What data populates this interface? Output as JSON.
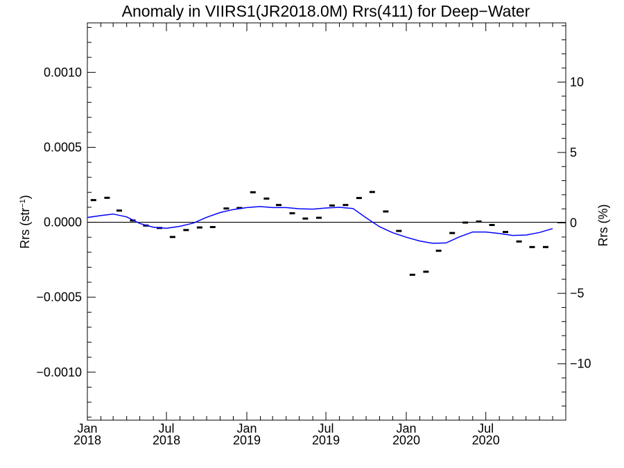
{
  "chart_data": {
    "type": "scatter",
    "title": "Anomaly in VIIRS1(JR2018.0M) Rrs(411) for Deep−Water",
    "ylabel_left": "Rrs (str",
    "ylabel_left_sup": "−1",
    "ylabel_left_end": ")",
    "ylabel_right": "Rrs (%)",
    "ylim": [
      -0.00132,
      0.00133
    ],
    "ylim_right": [
      -14.0,
      14.2
    ],
    "xlim": [
      "2018-01-01",
      "2020-12-31"
    ],
    "left_ticks": [
      {
        "value": 0.001,
        "label": "0.0010"
      },
      {
        "value": 0.0005,
        "label": "0.0005"
      },
      {
        "value": 0.0,
        "label": "0.0000"
      },
      {
        "value": -0.0005,
        "label": "−0.0005"
      },
      {
        "value": -0.001,
        "label": "−0.0010"
      }
    ],
    "right_ticks": [
      {
        "value": 10,
        "label": "10"
      },
      {
        "value": 5,
        "label": "5"
      },
      {
        "value": 0,
        "label": "0"
      },
      {
        "value": -5,
        "label": "−5"
      },
      {
        "value": -10,
        "label": "−10"
      }
    ],
    "x_ticks": [
      {
        "date": "2018-01-01",
        "month": "Jan",
        "year": "2018"
      },
      {
        "date": "2018-07-01",
        "month": "Jul",
        "year": "2018"
      },
      {
        "date": "2019-01-01",
        "month": "Jan",
        "year": "2019"
      },
      {
        "date": "2019-07-01",
        "month": "Jul",
        "year": "2019"
      },
      {
        "date": "2020-01-01",
        "month": "Jan",
        "year": "2020"
      },
      {
        "date": "2020-07-01",
        "month": "Jul",
        "year": "2020"
      }
    ],
    "zero_line": 0.0,
    "series": [
      {
        "kind": "markers",
        "color": "#000000",
        "points": [
          [
            "2018-01-15",
            0.000148
          ],
          [
            "2018-02-15",
            0.000163
          ],
          [
            "2018-03-15",
            7.8e-05
          ],
          [
            "2018-04-15",
            1.2e-05
          ],
          [
            "2018-05-15",
            -2.2e-05
          ],
          [
            "2018-06-15",
            -3.8e-05
          ],
          [
            "2018-07-15",
            -9.8e-05
          ],
          [
            "2018-08-15",
            -5.2e-05
          ],
          [
            "2018-09-15",
            -3.5e-05
          ],
          [
            "2018-10-15",
            -3.2e-05
          ],
          [
            "2018-11-15",
            9.2e-05
          ],
          [
            "2018-12-15",
            9.5e-05
          ],
          [
            "2019-01-15",
            0.0002
          ],
          [
            "2019-02-15",
            0.000158
          ],
          [
            "2019-03-15",
            0.000115
          ],
          [
            "2019-04-15",
            6e-05
          ],
          [
            "2019-05-15",
            2.5e-05
          ],
          [
            "2019-06-15",
            3e-05
          ],
          [
            "2019-07-15",
            0.000112
          ],
          [
            "2019-08-15",
            0.000115
          ],
          [
            "2019-09-15",
            0.000162
          ],
          [
            "2019-10-15",
            0.000202
          ],
          [
            "2019-11-15",
            7.2e-05
          ],
          [
            "2019-12-15",
            -5.8e-05
          ],
          [
            "2020-01-15",
            -0.00035
          ],
          [
            "2020-02-15",
            -0.00033
          ],
          [
            "2020-03-15",
            -0.00019
          ],
          [
            "2020-04-15",
            -7.2e-05
          ],
          [
            "2020-05-15",
            -2e-06
          ],
          [
            "2020-06-15",
            5e-06
          ],
          [
            "2020-07-15",
            -1.8e-05
          ],
          [
            "2020-08-15",
            -6.5e-05
          ],
          [
            "2020-09-15",
            -0.000128
          ],
          [
            "2020-10-15",
            -0.000165
          ],
          [
            "2020-11-15",
            -0.000165
          ]
        ]
      },
      {
        "kind": "line",
        "color": "#0000ff",
        "points": [
          [
            "2018-01-01",
            3.2e-05
          ],
          [
            "2018-02-01",
            4.5e-05
          ],
          [
            "2018-03-01",
            5.5e-05
          ],
          [
            "2018-04-01",
            3.6e-05
          ],
          [
            "2018-05-01",
            -8e-06
          ],
          [
            "2018-06-01",
            -3.3e-05
          ],
          [
            "2018-07-01",
            -4e-05
          ],
          [
            "2018-08-01",
            -2.7e-05
          ],
          [
            "2018-09-01",
            -5e-06
          ],
          [
            "2018-10-01",
            3.3e-05
          ],
          [
            "2018-11-01",
            6.5e-05
          ],
          [
            "2018-12-01",
            8.5e-05
          ],
          [
            "2019-01-01",
            9.8e-05
          ],
          [
            "2019-02-01",
            0.000105
          ],
          [
            "2019-03-01",
            9.8e-05
          ],
          [
            "2019-04-01",
            9.8e-05
          ],
          [
            "2019-05-01",
            9e-05
          ],
          [
            "2019-06-01",
            8.8e-05
          ],
          [
            "2019-07-01",
            9.5e-05
          ],
          [
            "2019-08-01",
            0.0001
          ],
          [
            "2019-09-01",
            9.2e-05
          ],
          [
            "2019-10-01",
            3e-05
          ],
          [
            "2019-11-01",
            -3e-05
          ],
          [
            "2019-12-01",
            -7e-05
          ],
          [
            "2020-01-01",
            -0.0001
          ],
          [
            "2020-02-01",
            -0.000125
          ],
          [
            "2020-03-01",
            -0.00014
          ],
          [
            "2020-04-01",
            -0.000138
          ],
          [
            "2020-05-01",
            -9.8e-05
          ],
          [
            "2020-06-01",
            -6.5e-05
          ],
          [
            "2020-07-01",
            -6.5e-05
          ],
          [
            "2020-08-01",
            -7.5e-05
          ],
          [
            "2020-09-01",
            -8.8e-05
          ],
          [
            "2020-10-01",
            -8.5e-05
          ],
          [
            "2020-11-01",
            -6.8e-05
          ],
          [
            "2020-12-01",
            -4.2e-05
          ]
        ]
      }
    ]
  }
}
